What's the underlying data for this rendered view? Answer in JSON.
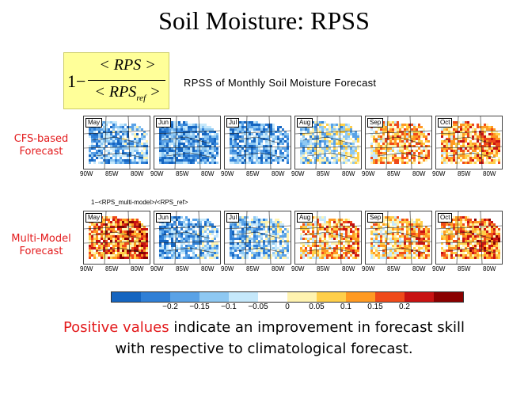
{
  "title": "Soil Moisture: RPSS",
  "formula": {
    "one_minus": "1−",
    "numerator": "< RPS >",
    "denominator": "< RPS",
    "denominator_sub": "ref",
    "denominator_close": " >"
  },
  "subtitle": "RPSS of Monthly Soil Moisture Forecast",
  "rows": [
    {
      "label_line1": "CFS-based",
      "label_line2": "Forecast"
    },
    {
      "label_line1": "Multi-Model",
      "label_line2": "Forecast"
    }
  ],
  "months": [
    "May",
    "Jun",
    "Jul",
    "Aug",
    "Sep",
    "Oct"
  ],
  "longitudes": [
    "90W",
    "85W",
    "80W"
  ],
  "mid_formula": "1−<RPS_multi-model>/<RPS_ref>",
  "colorbar": {
    "colors": [
      "#1565c0",
      "#2f7fd6",
      "#5aa2e6",
      "#8ec8f2",
      "#c5e8fb",
      "#ffffff",
      "#fff3b0",
      "#ffcf4a",
      "#ff9a22",
      "#ef4a1a",
      "#c81212",
      "#8a0000"
    ],
    "ticks": [
      "−0.2",
      "−0.15",
      "−0.1",
      "−0.05",
      "0",
      "0.05",
      "0.1",
      "0.15",
      "0.2"
    ]
  },
  "footer": {
    "highlight": "Positive values",
    "rest_line1": " indicate an improvement in forecast skill",
    "line2": "with respective to climatological forecast."
  }
}
